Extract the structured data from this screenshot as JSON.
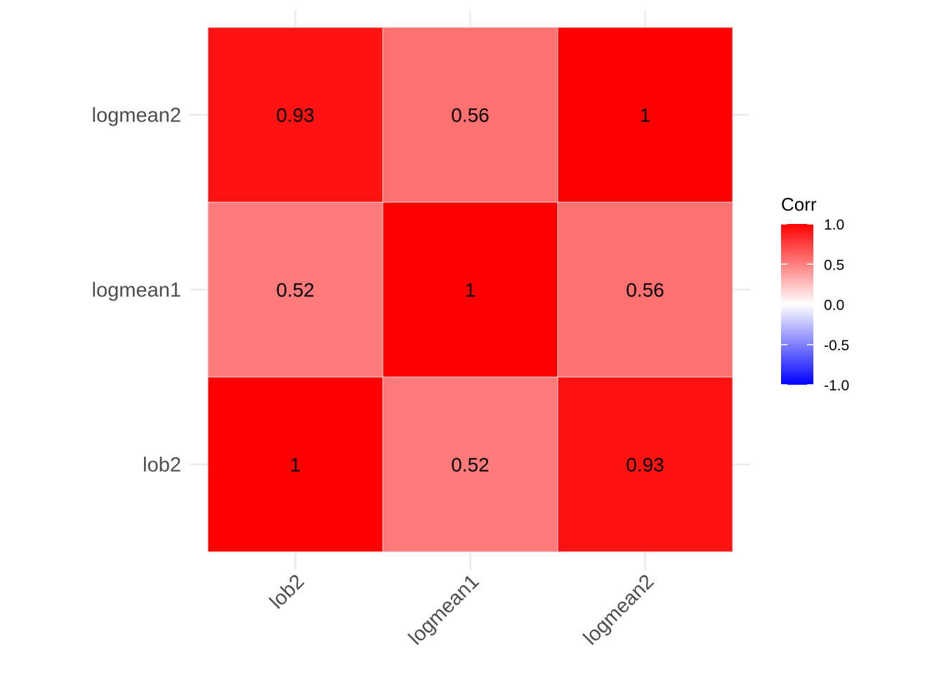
{
  "chart_data": {
    "type": "heatmap",
    "title": "",
    "xlabel": "",
    "ylabel": "",
    "x_categories": [
      "lob2",
      "logmean1",
      "logmean2"
    ],
    "y_categories": [
      "lob2",
      "logmean1",
      "logmean2"
    ],
    "matrix": [
      [
        1,
        0.52,
        0.93
      ],
      [
        0.52,
        1,
        0.56
      ],
      [
        0.93,
        0.56,
        1
      ]
    ],
    "cells": [
      {
        "x": "lob2",
        "y": "lob2",
        "value": 1,
        "label": "1"
      },
      {
        "x": "logmean1",
        "y": "lob2",
        "value": 0.52,
        "label": "0.52"
      },
      {
        "x": "logmean2",
        "y": "lob2",
        "value": 0.93,
        "label": "0.93"
      },
      {
        "x": "lob2",
        "y": "logmean1",
        "value": 0.52,
        "label": "0.52"
      },
      {
        "x": "logmean1",
        "y": "logmean1",
        "value": 1,
        "label": "1"
      },
      {
        "x": "logmean2",
        "y": "logmean1",
        "value": 0.56,
        "label": "0.56"
      },
      {
        "x": "lob2",
        "y": "logmean2",
        "value": 0.93,
        "label": "0.93"
      },
      {
        "x": "logmean1",
        "y": "logmean2",
        "value": 0.56,
        "label": "0.56"
      },
      {
        "x": "logmean2",
        "y": "logmean2",
        "value": 1,
        "label": "1"
      }
    ],
    "legend": {
      "title": "Corr",
      "range": [
        -1,
        1
      ],
      "breaks": [
        1.0,
        0.5,
        0.0,
        -0.5,
        -1.0
      ],
      "break_labels": [
        "1.0",
        "0.5",
        "0.0",
        "-0.5",
        "-1.0"
      ],
      "low_color": "#0000ff",
      "mid_color": "#ffffff",
      "high_color": "#ff0000",
      "position": "right"
    }
  }
}
